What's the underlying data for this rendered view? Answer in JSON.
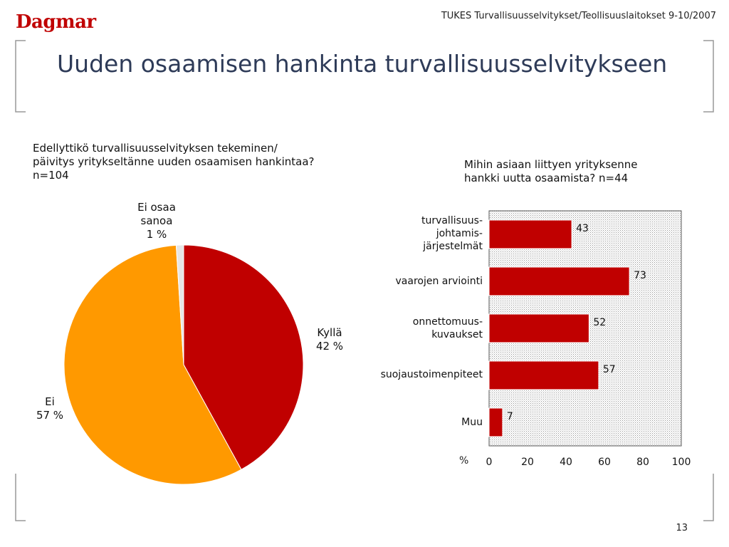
{
  "header": {
    "logo": "Dagmar",
    "caption": "TUKES Turvallisuusselvitykset/Teollisuuslaitokset 9-10/2007"
  },
  "slide": {
    "title": "Uuden osaamisen hankinta turvallisuusselvitykseen",
    "page_number": "13"
  },
  "colors": {
    "brand_red": "#c00000",
    "orange": "#ff9900",
    "light_gray": "#e6e6e6",
    "title_blue": "#2e3b58"
  },
  "left_question": {
    "line1": "Edellyttikö turvallisuusselvityksen tekeminen/",
    "line2": "päivitys yritykseltänne uuden osaamisen hankintaa?",
    "line3": "n=104"
  },
  "right_question": {
    "line1": "Mihin asiaan liittyen yrityksenne",
    "line2": "hankki uutta osaamista? n=44"
  },
  "pie_labels": {
    "kylla": [
      "Kyllä",
      "42 %"
    ],
    "ei": [
      "Ei",
      "57 %"
    ],
    "eos": [
      "Ei osaa",
      "sanoa",
      "1 %"
    ]
  },
  "bar_labels": {
    "c1": [
      "turvallisuus-",
      "johtamis-",
      "järjestelmät"
    ],
    "c2": [
      "vaarojen arviointi"
    ],
    "c3": [
      "onnettomuus-",
      "kuvaukset"
    ],
    "c4": [
      "suojaustoimenpiteet"
    ],
    "c5": [
      "Muu"
    ],
    "unit": "%"
  },
  "chart_data": [
    {
      "type": "pie",
      "slices": [
        {
          "label": "Kyllä",
          "value": 42,
          "color": "#c00000"
        },
        {
          "label": "Ei",
          "value": 57,
          "color": "#ff9900"
        },
        {
          "label": "Ei osaa sanoa",
          "value": 1,
          "color": "#e6e6e6"
        }
      ]
    },
    {
      "type": "bar",
      "orientation": "horizontal",
      "categories": [
        "turvallisuus-johtamis-järjestelmät",
        "vaarojen arviointi",
        "onnettomuus-kuvaukset",
        "suojaustoimenpiteet",
        "Muu"
      ],
      "values": [
        43,
        73,
        52,
        57,
        7
      ],
      "xlim": [
        0,
        100
      ],
      "ticks": [
        0,
        20,
        40,
        60,
        80,
        100
      ],
      "xlabel": "%",
      "color": "#c00000",
      "plot_background": "dotted gray"
    }
  ]
}
